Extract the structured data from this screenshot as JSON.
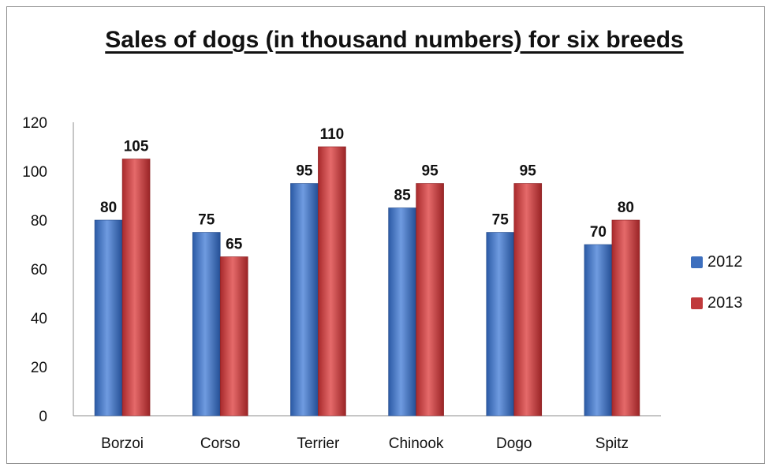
{
  "chart_data": {
    "type": "bar",
    "title": "Sales of dogs (in thousand numbers) for six breeds",
    "categories": [
      "Borzoi",
      "Corso",
      "Terrier",
      "Chinook",
      "Dogo",
      "Spitz"
    ],
    "series": [
      {
        "name": "2012",
        "values": [
          80,
          75,
          95,
          85,
          75,
          70
        ],
        "color": "#3d6fbe"
      },
      {
        "name": "2013",
        "values": [
          105,
          65,
          110,
          95,
          95,
          80
        ],
        "color": "#c0393b"
      }
    ],
    "yticks": [
      "0",
      "20",
      "40",
      "60",
      "80",
      "100",
      "120"
    ],
    "ylim": [
      0,
      120
    ],
    "grid": false,
    "legend": "right",
    "data_labels": true
  }
}
